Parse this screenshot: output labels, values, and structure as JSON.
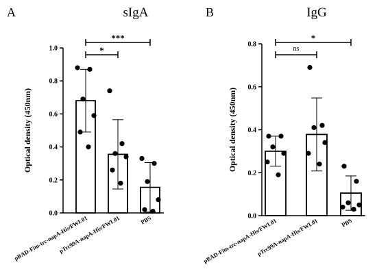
{
  "chart_data": [
    {
      "type": "bar",
      "panel": "A",
      "title": "sIgA",
      "ylabel": "Optical density (450nm)",
      "ylim": [
        0,
        1.0
      ],
      "yticks": [
        0.0,
        0.2,
        0.4,
        0.6,
        0.8,
        1.0
      ],
      "ytick_labels": [
        "0.0",
        "0.2",
        "0.4",
        "0.6",
        "0.8",
        "1.0"
      ],
      "categories": [
        "pBAD-Fim-trc-napA-His/FWL01",
        "pTrc99A-napA-His/FWL01",
        "PBS"
      ],
      "values": [
        0.68,
        0.355,
        0.155
      ],
      "errors": [
        0.19,
        0.21,
        0.15
      ],
      "points": [
        [
          0.88,
          0.87,
          0.69,
          0.59,
          0.49,
          0.4
        ],
        [
          0.74,
          0.42,
          0.36,
          0.34,
          0.26,
          0.18
        ],
        [
          0.33,
          0.3,
          0.19,
          0.08,
          0.02,
          0.01
        ]
      ],
      "significance": [
        {
          "from": 0,
          "to": 1,
          "label": "*"
        },
        {
          "from": 0,
          "to": 2,
          "label": "***"
        }
      ]
    },
    {
      "type": "bar",
      "panel": "B",
      "title": "IgG",
      "ylabel": "Optical density (450nm)",
      "ylim": [
        0,
        0.8
      ],
      "yticks": [
        0.0,
        0.2,
        0.4,
        0.6,
        0.8
      ],
      "ytick_labels": [
        "0.0",
        "0.2",
        "0.4",
        "0.6",
        "0.8"
      ],
      "categories": [
        "pBAD-Fim-trc-napA-His/FWL01",
        "pTrc99A-napA-His/FWL01",
        "PBS"
      ],
      "values": [
        0.3,
        0.378,
        0.105
      ],
      "errors": [
        0.07,
        0.17,
        0.08
      ],
      "points": [
        [
          0.37,
          0.37,
          0.32,
          0.29,
          0.25,
          0.19
        ],
        [
          0.69,
          0.42,
          0.41,
          0.34,
          0.29,
          0.24
        ],
        [
          0.23,
          0.16,
          0.06,
          0.05,
          0.04,
          0.03
        ]
      ],
      "significance": [
        {
          "from": 0,
          "to": 1,
          "label": "ns"
        },
        {
          "from": 0,
          "to": 2,
          "label": "*"
        }
      ]
    }
  ]
}
